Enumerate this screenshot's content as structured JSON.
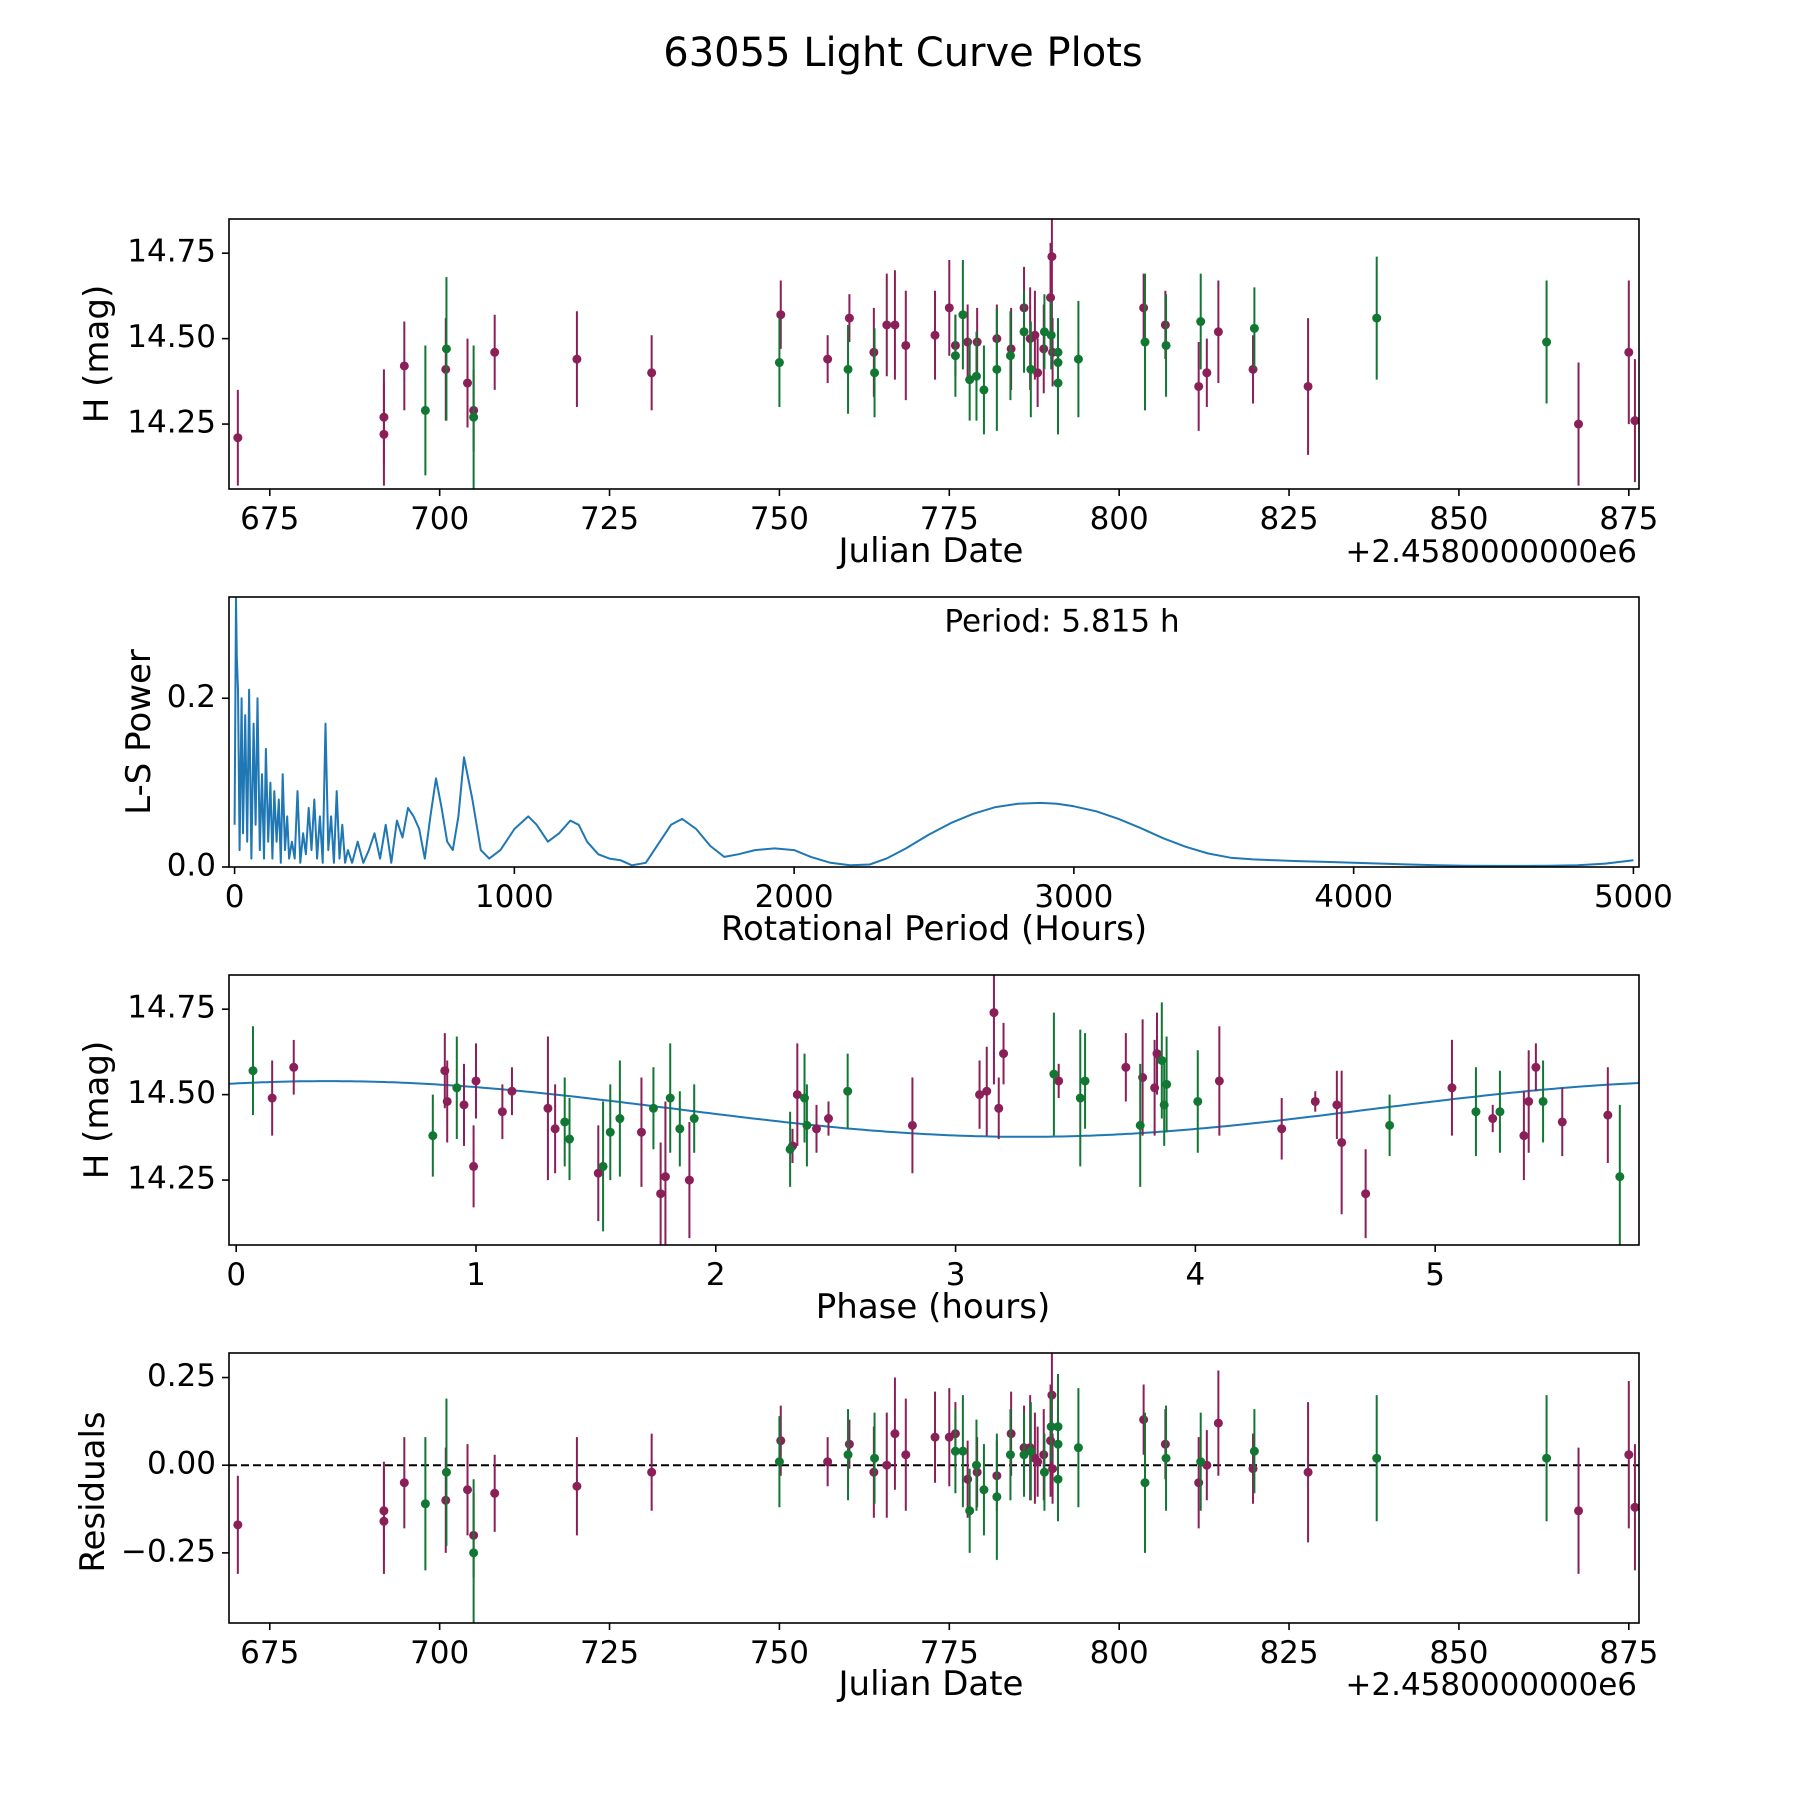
{
  "figure": {
    "title": "63055 Light Curve Plots"
  },
  "colors": {
    "band_a": "#8b1f57",
    "band_b": "#117733",
    "model": "#1f77b4",
    "zero_line": "#000000"
  },
  "chart_data": [
    {
      "name": "light_curve",
      "type": "scatter",
      "xlabel": "Julian Date",
      "ylabel": "H (mag)",
      "x_offset_label": "+2.4580000000e6",
      "xlim": [
        669,
        876.5
      ],
      "ylim": [
        14.06,
        14.85
      ],
      "xticks": [
        675,
        700,
        725,
        750,
        775,
        800,
        825,
        850,
        875
      ],
      "xtick_labels": [
        "675",
        "700",
        "725",
        "750",
        "775",
        "800",
        "825",
        "850",
        "875"
      ],
      "yticks": [
        14.25,
        14.5,
        14.75
      ],
      "ytick_labels": [
        "14.25",
        "14.50",
        "14.75"
      ],
      "series": [
        {
          "name": "band A",
          "color": "#8b1f57",
          "x": [
            670.3,
            691.8,
            691.8,
            694.8,
            700.9,
            704.1,
            705.0,
            708.1,
            720.2,
            731.2,
            750.2,
            757.1,
            760.3,
            763.9,
            765.8,
            767.0,
            768.6,
            772.9,
            775.0,
            775.9,
            777.7,
            779.1,
            782.0,
            784.1,
            786.0,
            786.9,
            787.6,
            788.0,
            788.9,
            789.9,
            790.1,
            790.2,
            803.6,
            806.8,
            811.7,
            812.9,
            814.6,
            819.7,
            827.8,
            867.6,
            875.0,
            875.9
          ],
          "y": [
            14.21,
            14.27,
            14.22,
            14.42,
            14.41,
            14.37,
            14.29,
            14.46,
            14.44,
            14.4,
            14.57,
            14.44,
            14.56,
            14.46,
            14.54,
            14.54,
            14.48,
            14.51,
            14.59,
            14.48,
            14.49,
            14.49,
            14.5,
            14.47,
            14.59,
            14.5,
            14.51,
            14.4,
            14.47,
            14.62,
            14.74,
            14.46,
            14.59,
            14.54,
            14.36,
            14.4,
            14.52,
            14.41,
            14.36,
            14.25,
            14.46,
            14.26
          ],
          "err": [
            0.14,
            0.14,
            0.15,
            0.13,
            0.15,
            0.13,
            0.12,
            0.11,
            0.14,
            0.11,
            0.1,
            0.07,
            0.07,
            0.13,
            0.15,
            0.16,
            0.16,
            0.13,
            0.14,
            0.09,
            0.11,
            0.1,
            0.1,
            0.12,
            0.12,
            0.15,
            0.13,
            0.1,
            0.13,
            0.16,
            0.23,
            0.1,
            0.1,
            0.1,
            0.13,
            0.1,
            0.15,
            0.1,
            0.2,
            0.18,
            0.21,
            0.18
          ]
        },
        {
          "name": "band B",
          "color": "#117733",
          "x": [
            697.9,
            701.0,
            705.0,
            750.0,
            760.1,
            764.0,
            775.9,
            777.0,
            778.0,
            779.0,
            780.1,
            782.0,
            784.0,
            786.0,
            787.0,
            789.0,
            790.0,
            791.0,
            791.0,
            791.0,
            794.0,
            803.8,
            806.9,
            812.0,
            819.9,
            837.9,
            862.9
          ],
          "y": [
            14.29,
            14.47,
            14.27,
            14.43,
            14.41,
            14.4,
            14.45,
            14.57,
            14.38,
            14.39,
            14.35,
            14.41,
            14.45,
            14.52,
            14.41,
            14.52,
            14.51,
            14.37,
            14.43,
            14.46,
            14.44,
            14.49,
            14.48,
            14.55,
            14.53,
            14.56,
            14.49
          ],
          "err": [
            0.19,
            0.21,
            0.21,
            0.13,
            0.13,
            0.13,
            0.12,
            0.16,
            0.12,
            0.13,
            0.13,
            0.18,
            0.13,
            0.12,
            0.14,
            0.11,
            0.1,
            0.15,
            0.12,
            0.1,
            0.17,
            0.2,
            0.15,
            0.14,
            0.12,
            0.18,
            0.18
          ]
        }
      ]
    },
    {
      "name": "periodogram",
      "type": "line",
      "xlabel": "Rotational Period (Hours)",
      "ylabel": "L-S Power",
      "annotation": "Period: 5.815 h",
      "xlim": [
        -20,
        5020
      ],
      "ylim": [
        0,
        0.32
      ],
      "xticks": [
        0,
        1000,
        2000,
        3000,
        4000,
        5000
      ],
      "xtick_labels": [
        "0",
        "1000",
        "2000",
        "3000",
        "4000",
        "5000"
      ],
      "yticks": [
        0.0,
        0.2
      ],
      "ytick_labels": [
        "0.0",
        "0.2"
      ],
      "x": [
        0,
        5,
        8,
        12,
        18,
        25,
        30,
        38,
        45,
        52,
        60,
        68,
        75,
        82,
        90,
        98,
        105,
        112,
        120,
        128,
        135,
        142,
        150,
        158,
        165,
        172,
        180,
        188,
        195,
        205,
        215,
        225,
        235,
        245,
        255,
        265,
        275,
        285,
        295,
        305,
        315,
        325,
        335,
        345,
        355,
        365,
        375,
        385,
        395,
        405,
        420,
        440,
        460,
        480,
        500,
        520,
        540,
        560,
        580,
        600,
        620,
        640,
        660,
        680,
        700,
        720,
        740,
        760,
        780,
        800,
        820,
        850,
        880,
        910,
        950,
        1000,
        1050,
        1080,
        1120,
        1160,
        1200,
        1230,
        1260,
        1300,
        1340,
        1380,
        1420,
        1470,
        1520,
        1560,
        1600,
        1650,
        1700,
        1750,
        1800,
        1860,
        1930,
        2000,
        2060,
        2130,
        2200,
        2270,
        2330,
        2400,
        2480,
        2560,
        2640,
        2720,
        2800,
        2880,
        2940,
        3000,
        3080,
        3160,
        3240,
        3320,
        3400,
        3480,
        3560,
        3640,
        3720,
        3800,
        3900,
        4000,
        4100,
        4200,
        4300,
        4400,
        4500,
        4600,
        4700,
        4800,
        4900,
        5000
      ],
      "values": [
        0.05,
        0.32,
        0.25,
        0.21,
        0.02,
        0.2,
        0.04,
        0.18,
        0.03,
        0.21,
        0.01,
        0.17,
        0.05,
        0.2,
        0.02,
        0.11,
        0.01,
        0.14,
        0.03,
        0.1,
        0.01,
        0.09,
        0.03,
        0.08,
        0.005,
        0.11,
        0.02,
        0.06,
        0.01,
        0.03,
        0.01,
        0.09,
        0.005,
        0.04,
        0.015,
        0.07,
        0.02,
        0.08,
        0.01,
        0.06,
        0.005,
        0.17,
        0.02,
        0.06,
        0.005,
        0.09,
        0.01,
        0.05,
        0.005,
        0.02,
        0.005,
        0.03,
        0.005,
        0.02,
        0.04,
        0.01,
        0.05,
        0.005,
        0.055,
        0.035,
        0.07,
        0.06,
        0.045,
        0.01,
        0.06,
        0.105,
        0.07,
        0.03,
        0.02,
        0.06,
        0.13,
        0.08,
        0.02,
        0.01,
        0.02,
        0.045,
        0.06,
        0.05,
        0.03,
        0.04,
        0.055,
        0.05,
        0.03,
        0.015,
        0.01,
        0.008,
        0.002,
        0.005,
        0.03,
        0.05,
        0.057,
        0.045,
        0.025,
        0.012,
        0.015,
        0.02,
        0.022,
        0.02,
        0.012,
        0.005,
        0.002,
        0.003,
        0.01,
        0.022,
        0.038,
        0.052,
        0.063,
        0.071,
        0.075,
        0.076,
        0.075,
        0.072,
        0.066,
        0.057,
        0.046,
        0.034,
        0.024,
        0.016,
        0.011,
        0.009,
        0.008,
        0.007,
        0.006,
        0.005,
        0.004,
        0.003,
        0.002,
        0.0015,
        0.0013,
        0.0013,
        0.0014,
        0.002,
        0.004,
        0.008
      ]
    },
    {
      "name": "phased_light_curve",
      "type": "scatter",
      "xlabel": "Phase (hours)",
      "ylabel": "H (mag)",
      "xlim": [
        -0.03,
        5.85
      ],
      "ylim": [
        14.06,
        14.85
      ],
      "xticks": [
        0,
        1,
        2,
        3,
        4,
        5
      ],
      "xtick_labels": [
        "0",
        "1",
        "2",
        "3",
        "4",
        "5"
      ],
      "yticks": [
        14.25,
        14.5,
        14.75
      ],
      "ytick_labels": [
        "14.25",
        "14.50",
        "14.75"
      ],
      "model": {
        "name": "fit",
        "color": "#1f77b4",
        "mean": 14.458,
        "amplitude": 0.0815,
        "period": 5.815,
        "peak_phase": 0.38
      },
      "series": [
        {
          "name": "band A",
          "color": "#8b1f57",
          "x": [
            0.15,
            0.24,
            0.87,
            0.88,
            0.95,
            0.99,
            1.0,
            1.11,
            1.15,
            1.3,
            1.33,
            1.51,
            1.69,
            1.77,
            1.79,
            1.89,
            2.32,
            2.34,
            2.42,
            2.47,
            2.82,
            3.1,
            3.13,
            3.16,
            3.18,
            3.2,
            3.43,
            3.71,
            3.78,
            3.83,
            3.84,
            4.1,
            4.36,
            4.5,
            4.59,
            4.61,
            4.71,
            5.07,
            5.24,
            5.37,
            5.39,
            5.42,
            5.53,
            5.72
          ],
          "y": [
            14.49,
            14.58,
            14.57,
            14.48,
            14.47,
            14.29,
            14.54,
            14.45,
            14.51,
            14.46,
            14.4,
            14.27,
            14.39,
            14.21,
            14.26,
            14.25,
            14.35,
            14.5,
            14.4,
            14.43,
            14.41,
            14.5,
            14.51,
            14.74,
            14.46,
            14.62,
            14.54,
            14.58,
            14.55,
            14.52,
            14.62,
            14.54,
            14.4,
            14.48,
            14.47,
            14.36,
            14.21,
            14.52,
            14.43,
            14.38,
            14.48,
            14.58,
            14.42,
            14.44
          ],
          "err": [
            0.11,
            0.08,
            0.11,
            0.12,
            0.12,
            0.12,
            0.11,
            0.08,
            0.07,
            0.21,
            0.13,
            0.14,
            0.16,
            0.15,
            0.22,
            0.17,
            0.05,
            0.15,
            0.07,
            0.05,
            0.14,
            0.1,
            0.13,
            0.21,
            0.09,
            0.09,
            0.05,
            0.1,
            0.17,
            0.14,
            0.12,
            0.16,
            0.09,
            0.03,
            0.1,
            0.21,
            0.13,
            0.14,
            0.04,
            0.13,
            0.15,
            0.07,
            0.1,
            0.14
          ]
        },
        {
          "name": "band B",
          "color": "#117733",
          "x": [
            0.07,
            0.82,
            0.92,
            1.37,
            1.39,
            1.53,
            1.56,
            1.6,
            1.74,
            1.81,
            1.85,
            1.91,
            2.31,
            2.37,
            2.38,
            2.55,
            3.41,
            3.52,
            3.54,
            3.77,
            3.86,
            3.87,
            3.88,
            4.01,
            4.81,
            5.17,
            5.27,
            5.45,
            5.77
          ],
          "y": [
            14.57,
            14.38,
            14.52,
            14.42,
            14.37,
            14.29,
            14.39,
            14.43,
            14.46,
            14.49,
            14.4,
            14.43,
            14.34,
            14.49,
            14.41,
            14.51,
            14.56,
            14.49,
            14.54,
            14.41,
            14.6,
            14.47,
            14.53,
            14.48,
            14.41,
            14.45,
            14.45,
            14.48,
            14.26
          ],
          "err": [
            0.13,
            0.12,
            0.15,
            0.13,
            0.12,
            0.19,
            0.14,
            0.17,
            0.12,
            0.16,
            0.11,
            0.1,
            0.11,
            0.13,
            0.12,
            0.11,
            0.18,
            0.2,
            0.14,
            0.18,
            0.17,
            0.12,
            0.14,
            0.15,
            0.09,
            0.13,
            0.12,
            0.12,
            0.21
          ]
        }
      ]
    },
    {
      "name": "residuals",
      "type": "scatter",
      "xlabel": "Julian Date",
      "ylabel": "Residuals",
      "x_offset_label": "+2.4580000000e6",
      "xlim": [
        669,
        876.5
      ],
      "ylim": [
        -0.45,
        0.32
      ],
      "xticks": [
        675,
        700,
        725,
        750,
        775,
        800,
        825,
        850,
        875
      ],
      "xtick_labels": [
        "675",
        "700",
        "725",
        "750",
        "775",
        "800",
        "825",
        "850",
        "875"
      ],
      "yticks": [
        -0.25,
        0.0,
        0.25
      ],
      "ytick_labels": [
        "−0.25",
        "0.00",
        "0.25"
      ],
      "zero_line": 0.0,
      "series": [
        {
          "name": "band A",
          "color": "#8b1f57",
          "x": [
            670.3,
            691.8,
            691.8,
            694.8,
            700.9,
            704.1,
            705.0,
            708.1,
            720.2,
            731.2,
            750.2,
            757.1,
            760.3,
            763.9,
            765.8,
            767.0,
            768.6,
            772.9,
            775.0,
            775.9,
            777.7,
            779.1,
            782.0,
            784.1,
            786.0,
            786.9,
            787.6,
            788.0,
            788.9,
            789.9,
            790.1,
            790.2,
            803.6,
            806.8,
            811.7,
            812.9,
            814.6,
            819.7,
            827.8,
            867.6,
            875.0,
            875.9
          ],
          "y": [
            -0.17,
            -0.13,
            -0.16,
            -0.05,
            -0.1,
            -0.07,
            -0.2,
            -0.08,
            -0.06,
            -0.02,
            0.07,
            0.01,
            0.06,
            -0.02,
            0.0,
            0.09,
            0.03,
            0.08,
            0.08,
            0.09,
            -0.04,
            -0.02,
            -0.03,
            0.09,
            0.05,
            0.05,
            0.02,
            0.01,
            0.03,
            0.07,
            0.2,
            -0.01,
            0.13,
            0.06,
            -0.05,
            0.0,
            0.12,
            -0.01,
            -0.02,
            -0.13,
            0.03,
            -0.12
          ],
          "err": [
            0.14,
            0.14,
            0.15,
            0.13,
            0.15,
            0.13,
            0.12,
            0.11,
            0.14,
            0.11,
            0.1,
            0.07,
            0.07,
            0.13,
            0.15,
            0.16,
            0.16,
            0.13,
            0.14,
            0.09,
            0.11,
            0.1,
            0.1,
            0.12,
            0.12,
            0.15,
            0.13,
            0.1,
            0.13,
            0.16,
            0.23,
            0.1,
            0.1,
            0.1,
            0.13,
            0.1,
            0.15,
            0.1,
            0.2,
            0.18,
            0.21,
            0.18
          ]
        },
        {
          "name": "band B",
          "color": "#117733",
          "x": [
            697.9,
            701.0,
            705.0,
            750.0,
            760.1,
            764.0,
            775.9,
            777.0,
            778.0,
            779.0,
            780.1,
            782.0,
            784.0,
            786.0,
            787.0,
            789.0,
            790.0,
            791.0,
            791.0,
            791.0,
            794.0,
            803.8,
            806.9,
            812.0,
            819.9,
            837.9,
            862.9
          ],
          "y": [
            -0.11,
            -0.02,
            -0.25,
            0.01,
            0.03,
            0.02,
            0.04,
            0.04,
            -0.13,
            0.0,
            -0.07,
            -0.09,
            0.03,
            0.03,
            0.04,
            -0.02,
            0.11,
            0.11,
            -0.04,
            0.06,
            0.05,
            -0.05,
            0.02,
            0.01,
            0.04,
            0.02,
            0.02
          ],
          "err": [
            0.19,
            0.21,
            0.21,
            0.13,
            0.13,
            0.13,
            0.12,
            0.16,
            0.12,
            0.13,
            0.13,
            0.18,
            0.13,
            0.12,
            0.14,
            0.11,
            0.1,
            0.15,
            0.12,
            0.1,
            0.17,
            0.2,
            0.15,
            0.14,
            0.12,
            0.18,
            0.18
          ]
        }
      ]
    }
  ]
}
